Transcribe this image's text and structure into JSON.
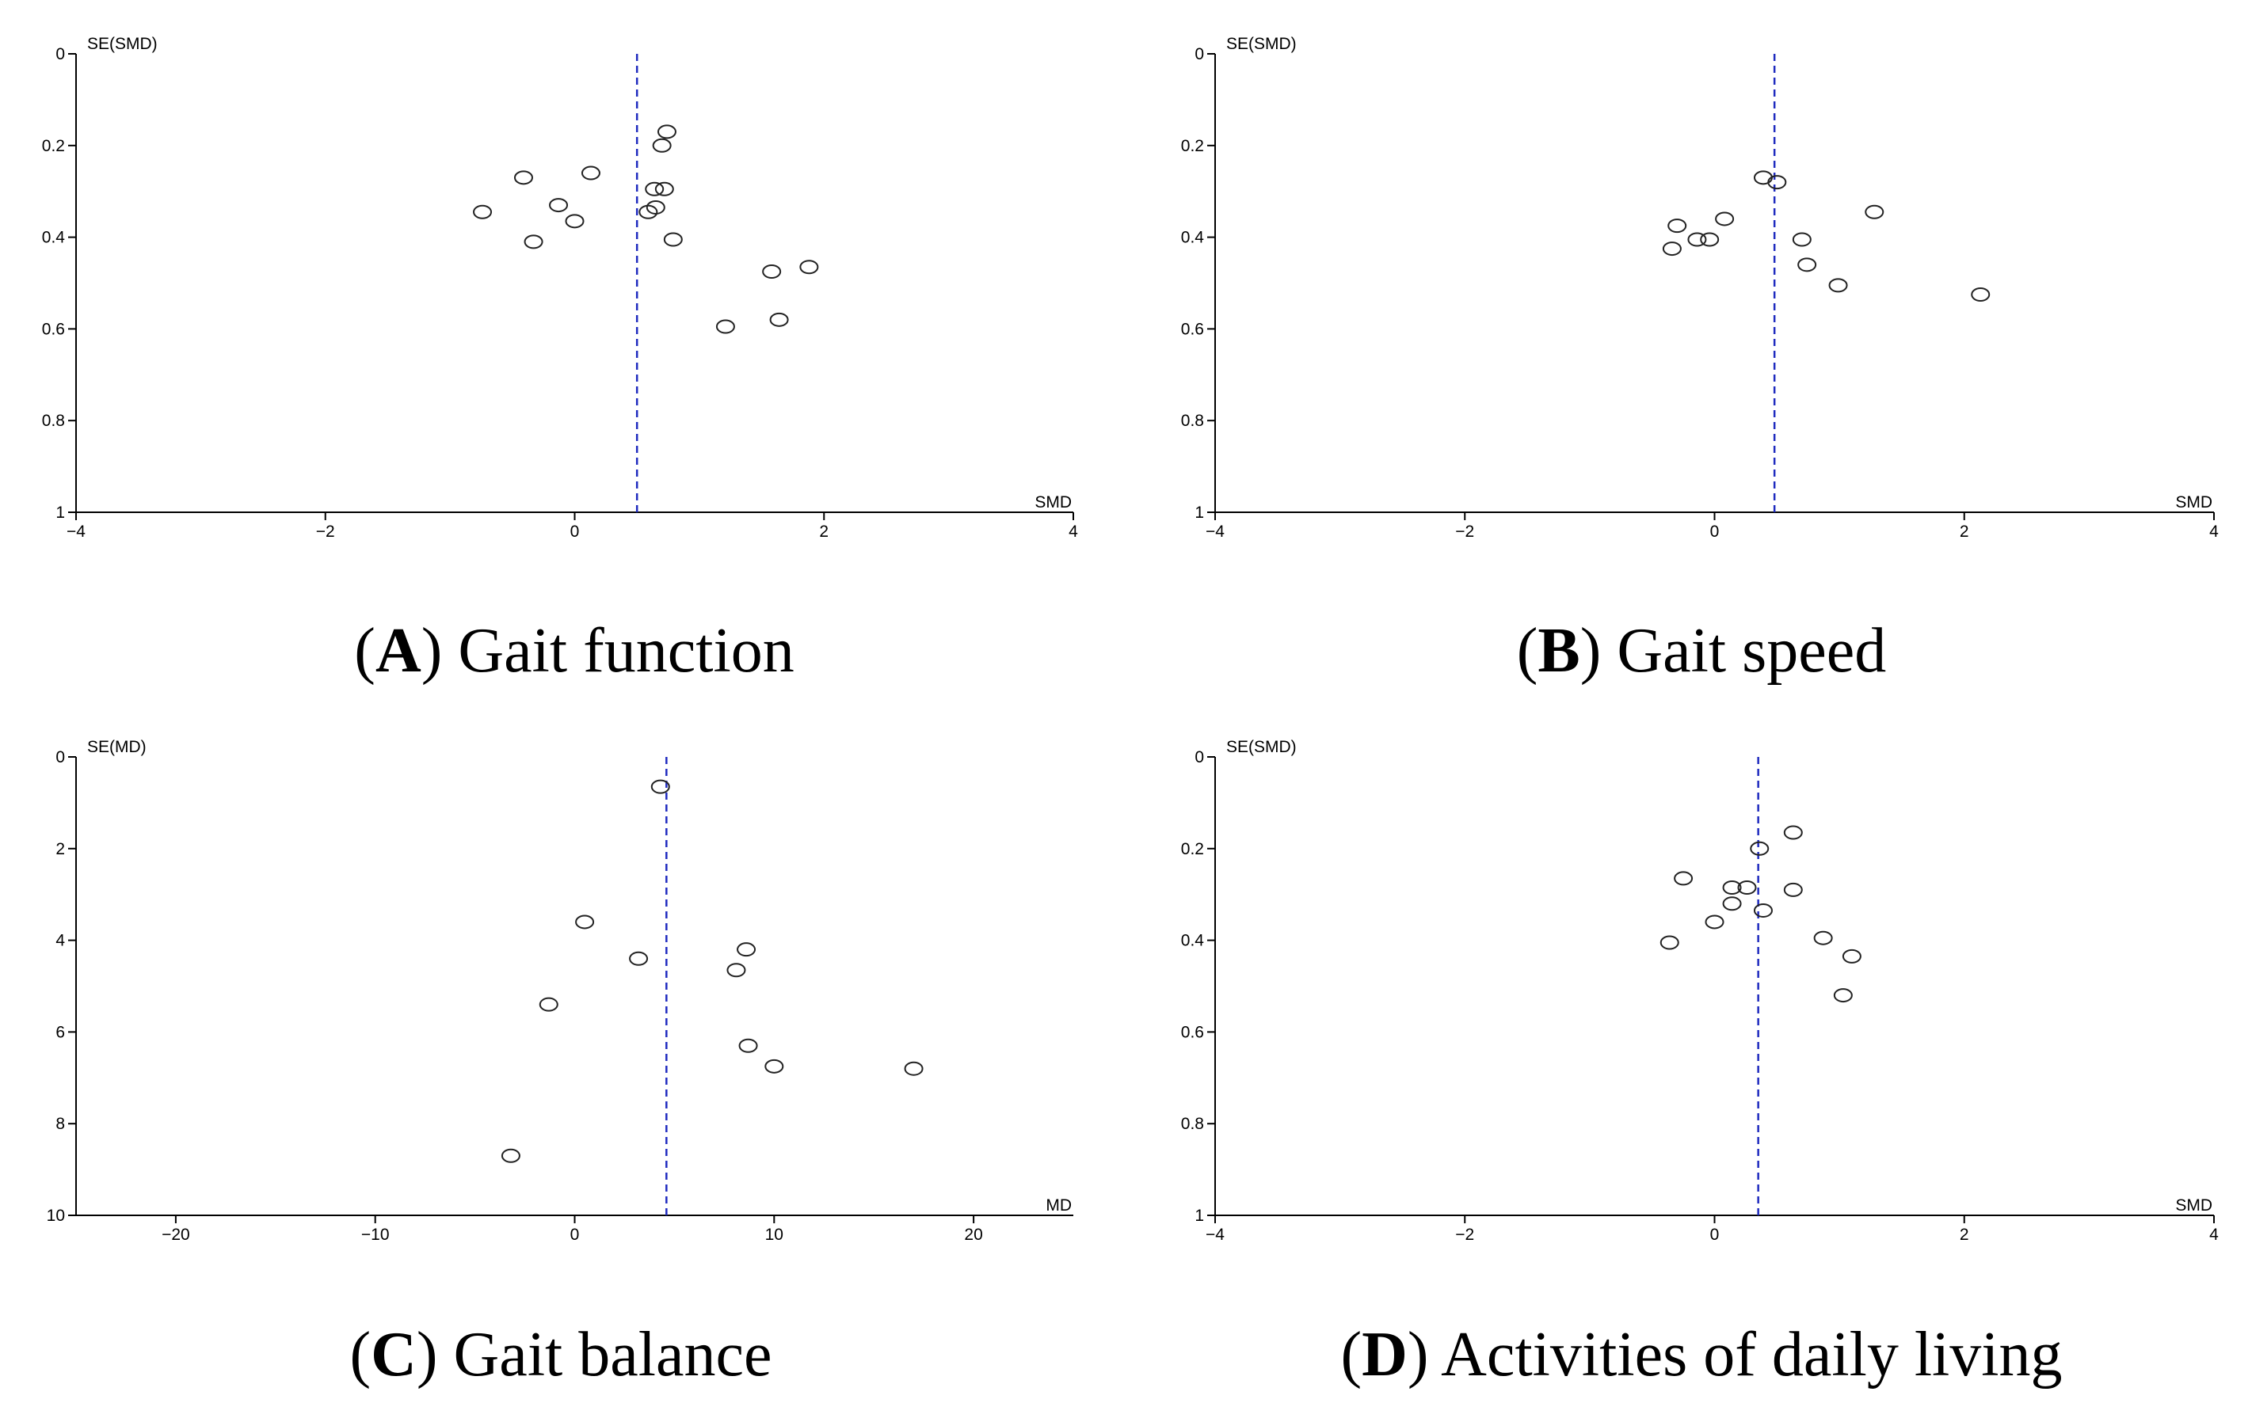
{
  "chart_data": [
    {
      "type": "scatter",
      "panel": "A",
      "caption_letter": "A",
      "caption_text": "Gait function",
      "title": "(A) Gait function",
      "xlabel": "SMD",
      "ylabel": "SE(SMD)",
      "xlim": [
        -4,
        4
      ],
      "ylim": [
        0,
        1
      ],
      "y_inverted": true,
      "x_ticks": [
        -4,
        -2,
        0,
        2,
        4
      ],
      "x_tick_labels": [
        "−4",
        "−2",
        "0",
        "2",
        "4"
      ],
      "y_ticks": [
        0,
        0.2,
        0.4,
        0.6,
        0.8,
        1
      ],
      "y_tick_labels": [
        "0",
        "0.2",
        "0.4",
        "0.6",
        "0.8",
        "1"
      ],
      "pooled_estimate": 0.5,
      "points": [
        {
          "x": 0.74,
          "y": 0.17
        },
        {
          "x": 0.7,
          "y": 0.2
        },
        {
          "x": 0.13,
          "y": 0.26
        },
        {
          "x": -0.41,
          "y": 0.27
        },
        {
          "x": 0.64,
          "y": 0.295
        },
        {
          "x": 0.72,
          "y": 0.295
        },
        {
          "x": -0.13,
          "y": 0.33
        },
        {
          "x": 0.65,
          "y": 0.335
        },
        {
          "x": 0.59,
          "y": 0.345
        },
        {
          "x": -0.74,
          "y": 0.345
        },
        {
          "x": 0.0,
          "y": 0.365
        },
        {
          "x": -0.33,
          "y": 0.41
        },
        {
          "x": 0.79,
          "y": 0.405
        },
        {
          "x": 1.88,
          "y": 0.465
        },
        {
          "x": 1.58,
          "y": 0.475
        },
        {
          "x": 1.64,
          "y": 0.58
        },
        {
          "x": 1.21,
          "y": 0.595
        }
      ]
    },
    {
      "type": "scatter",
      "panel": "B",
      "caption_letter": "B",
      "caption_text": "Gait speed",
      "title": "(B) Gait speed",
      "xlabel": "SMD",
      "ylabel": "SE(SMD)",
      "xlim": [
        -4,
        4
      ],
      "ylim": [
        0,
        1
      ],
      "y_inverted": true,
      "x_ticks": [
        -4,
        -2,
        0,
        2,
        4
      ],
      "x_tick_labels": [
        "−4",
        "−2",
        "0",
        "2",
        "4"
      ],
      "y_ticks": [
        0,
        0.2,
        0.4,
        0.6,
        0.8,
        1
      ],
      "y_tick_labels": [
        "0",
        "0.2",
        "0.4",
        "0.6",
        "0.8",
        "1"
      ],
      "pooled_estimate": 0.48,
      "points": [
        {
          "x": 0.39,
          "y": 0.27
        },
        {
          "x": 0.5,
          "y": 0.28
        },
        {
          "x": 1.28,
          "y": 0.345
        },
        {
          "x": 0.08,
          "y": 0.36
        },
        {
          "x": -0.3,
          "y": 0.375
        },
        {
          "x": -0.14,
          "y": 0.405
        },
        {
          "x": -0.04,
          "y": 0.405
        },
        {
          "x": 0.7,
          "y": 0.405
        },
        {
          "x": -0.34,
          "y": 0.425
        },
        {
          "x": 0.74,
          "y": 0.46
        },
        {
          "x": 0.99,
          "y": 0.505
        },
        {
          "x": 2.13,
          "y": 0.525
        }
      ]
    },
    {
      "type": "scatter",
      "panel": "C",
      "caption_letter": "C",
      "caption_text": "Gait balance",
      "title": "(C) Gait balance",
      "xlabel": "MD",
      "ylabel": "SE(MD)",
      "xlim": [
        -25,
        25
      ],
      "ylim": [
        0,
        10
      ],
      "y_inverted": true,
      "x_ticks": [
        -20,
        -10,
        0,
        10,
        20
      ],
      "x_tick_labels": [
        "−20",
        "−10",
        "0",
        "10",
        "20"
      ],
      "y_ticks": [
        0,
        2,
        4,
        6,
        8,
        10
      ],
      "y_tick_labels": [
        "0",
        "2",
        "4",
        "6",
        "8",
        "10"
      ],
      "pooled_estimate": 4.6,
      "points": [
        {
          "x": 4.3,
          "y": 0.65
        },
        {
          "x": 0.5,
          "y": 3.6
        },
        {
          "x": 3.2,
          "y": 4.4
        },
        {
          "x": 8.6,
          "y": 4.2
        },
        {
          "x": 8.1,
          "y": 4.65
        },
        {
          "x": -1.3,
          "y": 5.4
        },
        {
          "x": 8.7,
          "y": 6.3
        },
        {
          "x": 10.0,
          "y": 6.75
        },
        {
          "x": 17.0,
          "y": 6.8
        },
        {
          "x": -3.2,
          "y": 8.7
        }
      ]
    },
    {
      "type": "scatter",
      "panel": "D",
      "caption_letter": "D",
      "caption_text": "Activities of daily living",
      "title": "(D) Activities of daily living",
      "xlabel": "SMD",
      "ylabel": "SE(SMD)",
      "xlim": [
        -4,
        4
      ],
      "ylim": [
        0,
        1
      ],
      "y_inverted": true,
      "x_ticks": [
        -4,
        -2,
        0,
        2,
        4
      ],
      "x_tick_labels": [
        "−4",
        "−2",
        "0",
        "2",
        "4"
      ],
      "y_ticks": [
        0,
        0.2,
        0.4,
        0.6,
        0.8,
        1
      ],
      "y_tick_labels": [
        "0",
        "0.2",
        "0.4",
        "0.6",
        "0.8",
        "1"
      ],
      "pooled_estimate": 0.35,
      "points": [
        {
          "x": 0.63,
          "y": 0.165
        },
        {
          "x": 0.36,
          "y": 0.2
        },
        {
          "x": -0.25,
          "y": 0.265
        },
        {
          "x": 0.14,
          "y": 0.285
        },
        {
          "x": 0.26,
          "y": 0.285
        },
        {
          "x": 0.63,
          "y": 0.29
        },
        {
          "x": 0.14,
          "y": 0.32
        },
        {
          "x": 0.39,
          "y": 0.335
        },
        {
          "x": 0.0,
          "y": 0.36
        },
        {
          "x": 0.87,
          "y": 0.395
        },
        {
          "x": -0.36,
          "y": 0.405
        },
        {
          "x": 1.1,
          "y": 0.435
        },
        {
          "x": 1.03,
          "y": 0.52
        }
      ]
    }
  ]
}
